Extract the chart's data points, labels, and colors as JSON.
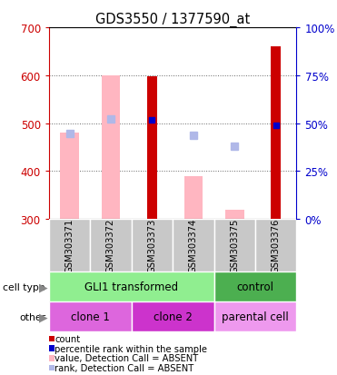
{
  "title": "GDS3550 / 1377590_at",
  "samples": [
    "GSM303371",
    "GSM303372",
    "GSM303373",
    "GSM303374",
    "GSM303375",
    "GSM303376"
  ],
  "ylim": [
    300,
    700
  ],
  "ylim_right": [
    0,
    100
  ],
  "yticks_left": [
    300,
    400,
    500,
    600,
    700
  ],
  "yticks_right": [
    0,
    25,
    50,
    75,
    100
  ],
  "counts": [
    null,
    null,
    597,
    null,
    null,
    660
  ],
  "values_absent": [
    480,
    600,
    null,
    390,
    320,
    null
  ],
  "rank_absent": [
    478,
    508,
    null,
    474,
    452,
    null
  ],
  "percentile_present": [
    null,
    null,
    507,
    null,
    null,
    496
  ],
  "bar_bottom": 300,
  "cell_type_groups": [
    {
      "label": "GLI1 transformed",
      "start": 0,
      "end": 4,
      "color": "#90EE90"
    },
    {
      "label": "control",
      "start": 4,
      "end": 6,
      "color": "#4CAF50"
    }
  ],
  "other_groups": [
    {
      "label": "clone 1",
      "start": 0,
      "end": 2,
      "color": "#DD66DD"
    },
    {
      "label": "clone 2",
      "start": 2,
      "end": 4,
      "color": "#CC33CC"
    },
    {
      "label": "parental cell",
      "start": 4,
      "end": 6,
      "color": "#EE99EE"
    }
  ],
  "count_color": "#CC0000",
  "value_absent_color": "#FFB6C1",
  "rank_absent_color": "#B0B8E8",
  "percentile_color": "#0000CC",
  "axis_color_left": "#CC0000",
  "axis_color_right": "#0000CC",
  "legend_items": [
    {
      "color": "#CC0000",
      "label": "count"
    },
    {
      "color": "#0000CC",
      "label": "percentile rank within the sample"
    },
    {
      "color": "#FFB6C1",
      "label": "value, Detection Call = ABSENT"
    },
    {
      "color": "#B0B8E8",
      "label": "rank, Detection Call = ABSENT"
    }
  ],
  "sample_box_color": "#C8C8C8",
  "sample_box_edge": "#888888"
}
